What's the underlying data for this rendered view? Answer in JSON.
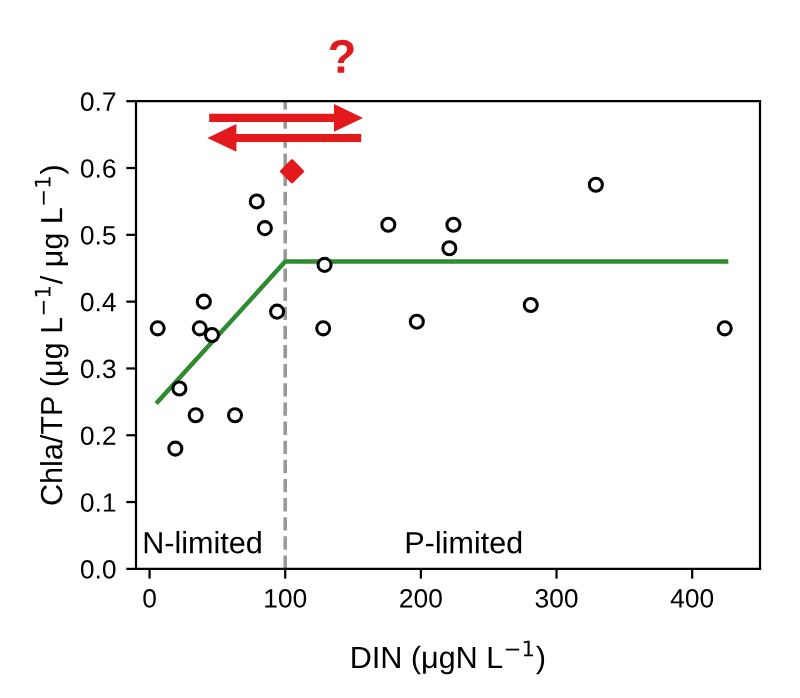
{
  "chart_data": {
    "type": "scatter",
    "xlabel": "DIN (μgN L$^{−1}$)",
    "ylabel": "Chla/TP (μg L$^{−1}$/ μg L$^{−1}$)",
    "xlim": [
      -10,
      450
    ],
    "ylim": [
      0,
      0.7
    ],
    "xticks": [
      0,
      100,
      200,
      300,
      400
    ],
    "yticks": [
      {
        "value": 0,
        "label": "0.0"
      },
      0.1,
      0.2,
      0.3,
      0.4,
      0.5,
      0.6,
      0.7
    ],
    "grid": false,
    "legend": false,
    "series": [
      {
        "marker": "circle",
        "color": "#000000",
        "x": [
          6,
          19,
          22,
          34,
          37,
          40,
          46,
          63,
          79,
          85,
          94,
          128,
          129,
          176,
          197,
          221,
          224,
          281,
          329,
          424
        ],
        "values": [
          0.36,
          0.18,
          0.27,
          0.23,
          0.36,
          0.4,
          0.35,
          0.23,
          0.55,
          0.51,
          0.385,
          0.36,
          0.455,
          0.515,
          0.37,
          0.48,
          0.515,
          0.395,
          0.575,
          0.36
        ]
      },
      {
        "marker": "diamond",
        "color": "#e31a1c",
        "x": [
          105
        ],
        "values": [
          0.595
        ]
      },
      {
        "type": "line",
        "marker": "none",
        "color": "#2e8b2e",
        "x": [
          6,
          100,
          425
        ],
        "values": [
          0.25,
          0.46,
          0.46
        ]
      }
    ],
    "ref_lines": [
      {
        "axis": "x",
        "value": 100,
        "color": "#999999",
        "line_style": "dashed"
      }
    ],
    "annotations": [
      "N-limited",
      "P-limited",
      "?"
    ]
  }
}
